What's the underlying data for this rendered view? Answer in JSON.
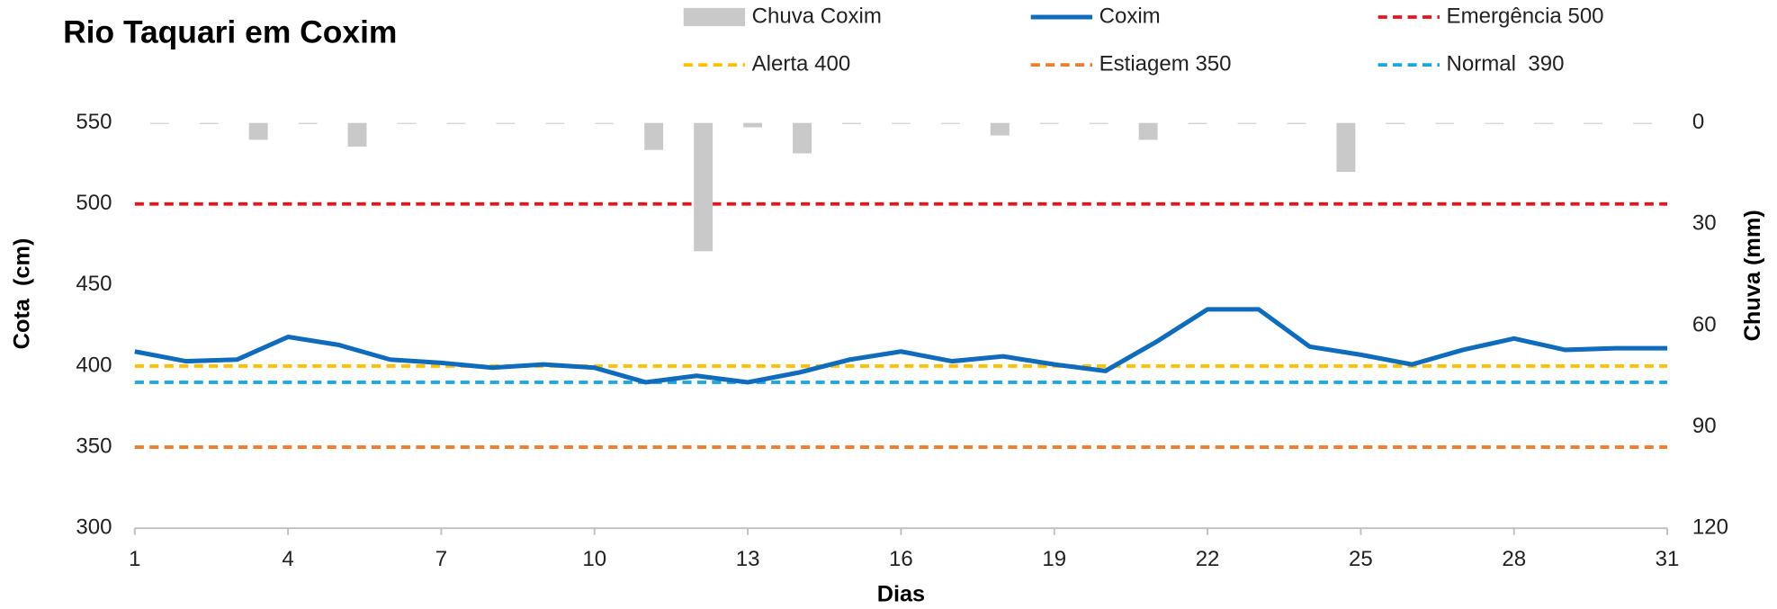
{
  "chart_data": {
    "type": "combo",
    "title": "Rio Taquari em Coxim",
    "x_label": "Dias",
    "y_label": "Cota  (cm)",
    "y2_label": "Chuva (mm)",
    "x": [
      1,
      2,
      3,
      4,
      5,
      6,
      7,
      8,
      9,
      10,
      11,
      12,
      13,
      14,
      15,
      16,
      17,
      18,
      19,
      20,
      21,
      22,
      23,
      24,
      25,
      26,
      27,
      28,
      29,
      30,
      31
    ],
    "xlim": [
      1,
      31
    ],
    "xticks": [
      1,
      4,
      7,
      10,
      13,
      16,
      19,
      22,
      25,
      28,
      31
    ],
    "ylim": [
      300,
      550
    ],
    "yticks": [
      300,
      350,
      400,
      450,
      500,
      550
    ],
    "y2lim": [
      120,
      0
    ],
    "y2ticks": [
      0,
      30,
      60,
      90,
      120
    ],
    "series": [
      {
        "name": "Chuva Coxim",
        "type": "bar",
        "axis": "y2",
        "color": "#c9c9c9",
        "values": [
          0,
          0.3,
          5,
          0.3,
          7,
          0,
          0,
          0,
          0,
          0,
          8,
          38,
          1.3,
          9,
          0.3,
          0,
          0,
          3.7,
          0,
          0,
          5,
          0.3,
          0,
          0.3,
          14.5,
          0.3,
          0,
          0,
          0,
          0,
          0
        ]
      },
      {
        "name": "Coxim",
        "type": "line",
        "color": "#0f6cbd",
        "values": [
          409,
          403,
          404,
          418,
          413,
          404,
          402,
          399,
          401,
          399,
          390,
          394,
          390,
          396,
          404,
          409,
          403,
          406,
          401,
          397,
          415,
          435,
          435,
          412,
          407,
          401,
          410,
          417,
          410,
          411,
          411
        ]
      }
    ],
    "reference_lines": [
      {
        "name": "Emergência 500",
        "value": 500,
        "color": "#e8141c"
      },
      {
        "name": "Alerta 400",
        "value": 400,
        "color": "#ffc000"
      },
      {
        "name": "Estiagem 350",
        "value": 350,
        "color": "#ed7d31"
      },
      {
        "name": "Normal  390",
        "value": 390,
        "color": "#1aa6e0"
      }
    ]
  }
}
